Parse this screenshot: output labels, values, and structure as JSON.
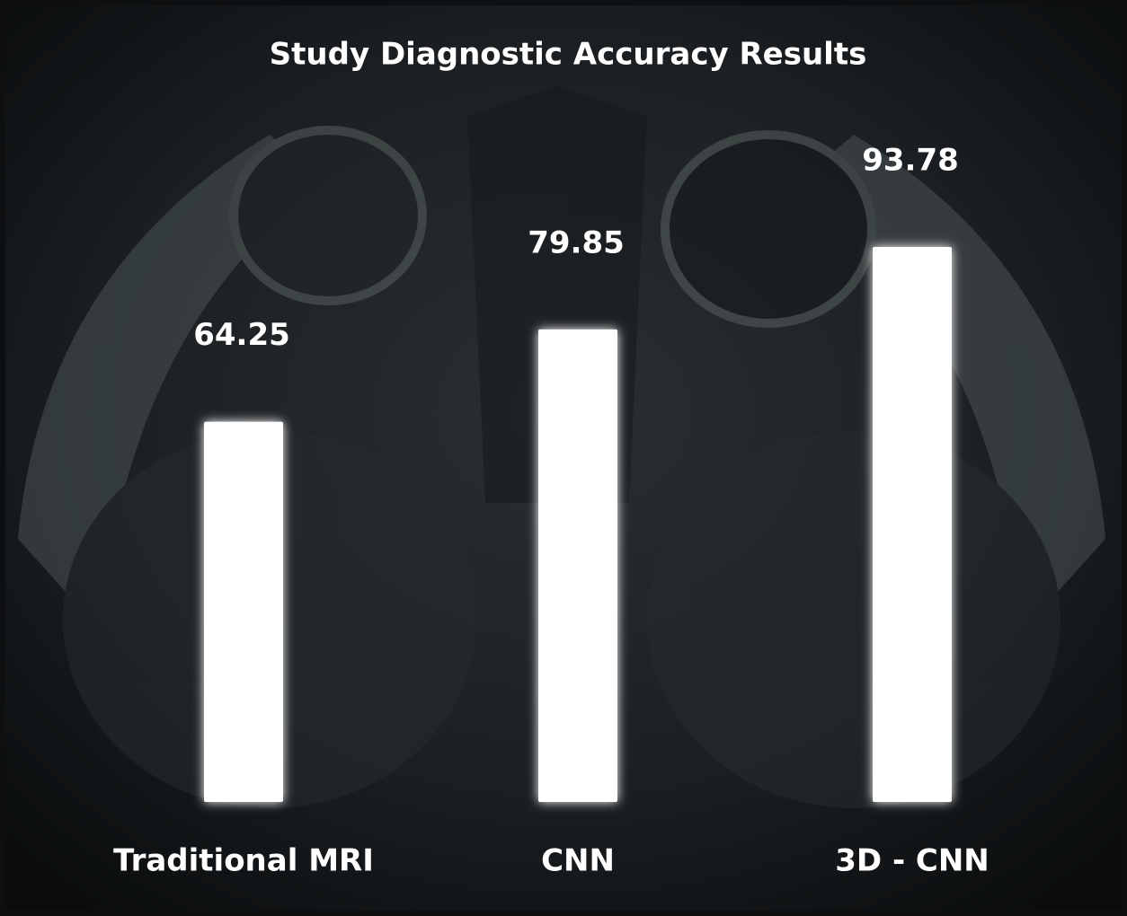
{
  "chart_data": {
    "type": "bar",
    "title": "Study Diagnostic Accuracy Results",
    "categories": [
      "Traditional MRI",
      "CNN",
      "3D - CNN"
    ],
    "values": [
      64.25,
      79.85,
      93.78
    ],
    "color": "#ffffff",
    "ylim": [
      0,
      100
    ]
  }
}
